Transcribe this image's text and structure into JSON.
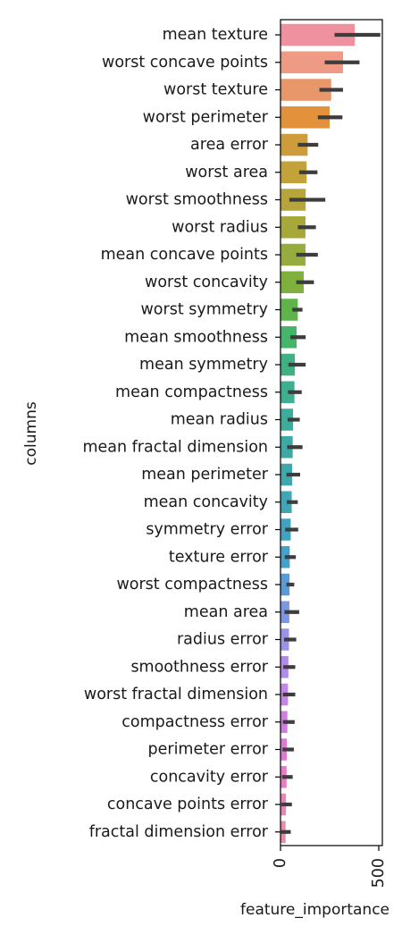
{
  "chart_data": {
    "type": "bar",
    "orientation": "horizontal",
    "xlabel": "feature_importance",
    "ylabel": "columns",
    "xlim": [
      0,
      520
    ],
    "x_ticks": [
      0,
      500
    ],
    "x_tick_labels": [
      "0",
      "500"
    ],
    "x_tick_label_rotation": "vertical",
    "grid": false,
    "categories": [
      "mean texture",
      "worst concave points",
      "worst texture",
      "worst perimeter",
      "area error",
      "worst area",
      "worst smoothness",
      "worst radius",
      "mean concave points",
      "worst concavity",
      "worst symmetry",
      "mean smoothness",
      "mean symmetry",
      "mean compactness",
      "mean radius",
      "mean fractal dimension",
      "mean perimeter",
      "mean concavity",
      "symmetry error",
      "texture error",
      "worst compactness",
      "mean area",
      "radius error",
      "smoothness error",
      "worst fractal dimension",
      "compactness error",
      "perimeter error",
      "concavity error",
      "concave points error",
      "fractal dimension error"
    ],
    "values": [
      378,
      318,
      258,
      250,
      138,
      133,
      128,
      127,
      127,
      118,
      88,
      82,
      73,
      71,
      64,
      62,
      59,
      57,
      52,
      47,
      46,
      45,
      43,
      40,
      38,
      35,
      32,
      31,
      28,
      26
    ],
    "error_low": [
      275,
      225,
      198,
      190,
      88,
      95,
      45,
      88,
      80,
      80,
      60,
      50,
      40,
      38,
      36,
      34,
      30,
      32,
      24,
      22,
      30,
      20,
      18,
      14,
      12,
      12,
      10,
      8,
      5,
      4
    ],
    "error_high": [
      508,
      402,
      318,
      315,
      192,
      188,
      228,
      180,
      190,
      170,
      112,
      128,
      128,
      108,
      98,
      112,
      100,
      88,
      90,
      78,
      70,
      95,
      80,
      75,
      75,
      72,
      68,
      62,
      58,
      52
    ],
    "colors": [
      "#f0919f",
      "#ee9a84",
      "#e8976a",
      "#e3913a",
      "#cf9c3c",
      "#c3a23a",
      "#b5a53a",
      "#a7a83a",
      "#96ac3e",
      "#7fb03e",
      "#5eb44a",
      "#44b56a",
      "#40b182",
      "#3eaf91",
      "#3dac9b",
      "#3eaaa5",
      "#3fa8ad",
      "#40a6b6",
      "#42a3c1",
      "#48a0cd",
      "#5a9ad8",
      "#7e97e4",
      "#9d92ea",
      "#b18aea",
      "#c485e8",
      "#d07fe0",
      "#dc7ad4",
      "#e77ec5",
      "#ea86b4",
      "#ec8ba7"
    ]
  }
}
